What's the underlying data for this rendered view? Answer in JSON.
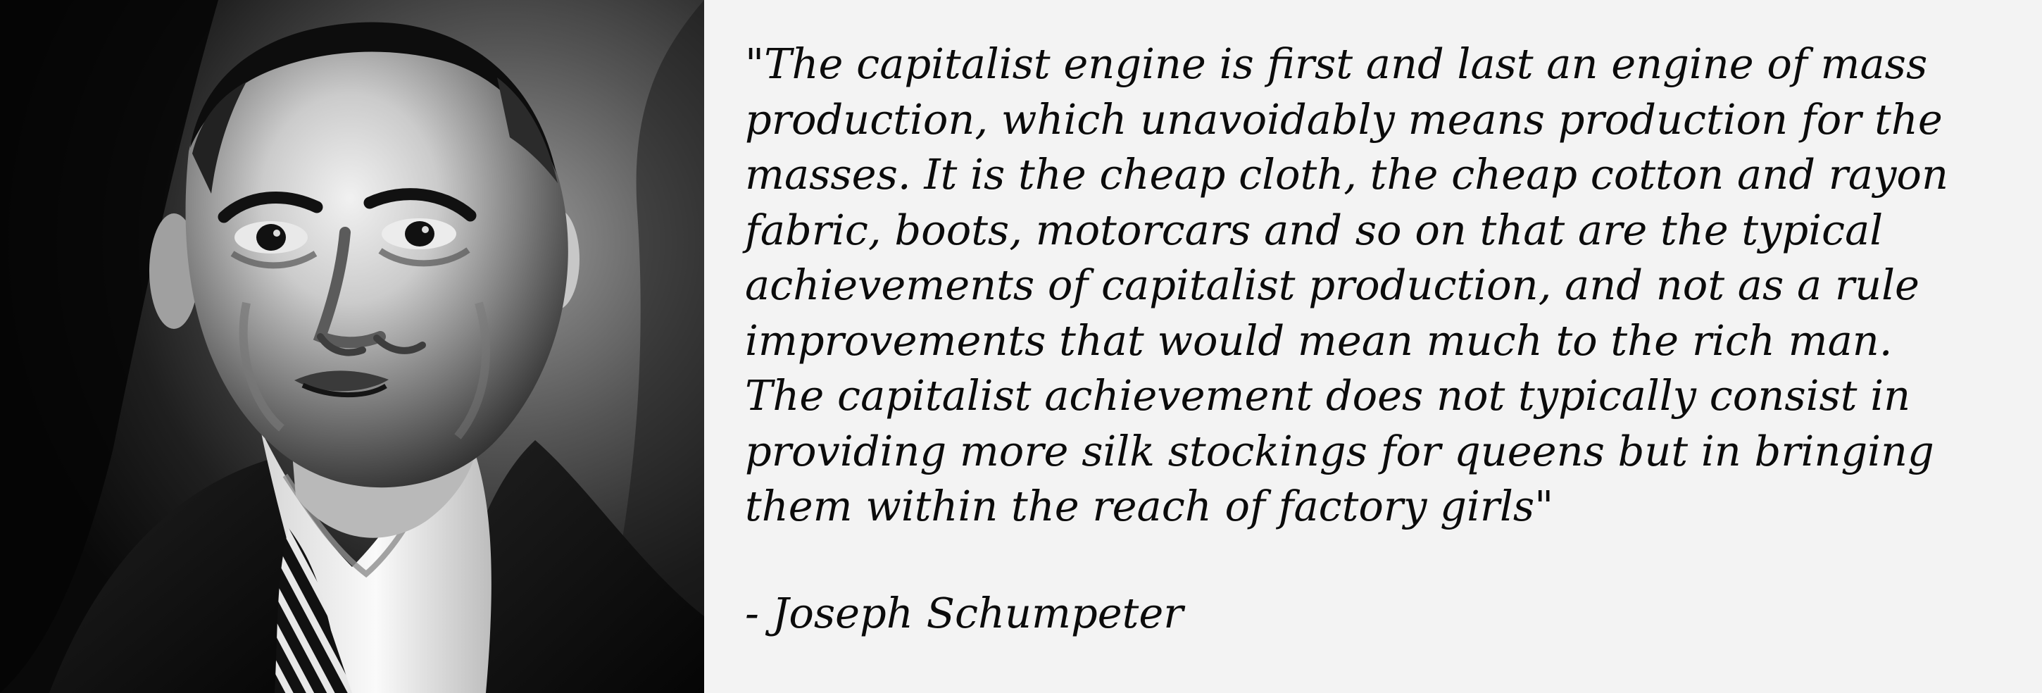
{
  "photo": {
    "subject": "portrait-photo"
  },
  "quote": {
    "lines": [
      "\"The capitalist engine is first and last an engine of mass",
      "production, which unavoidably means production for the",
      "masses. It is the cheap cloth, the cheap cotton and rayon",
      "fabric, boots, motorcars and so on that are the typical",
      "achievements of capitalist production, and not as a rule",
      "improvements that would mean much to the rich man.",
      "The capitalist achievement does not typically consist in",
      "providing more silk stockings for queens but in bringing",
      "them within the reach of factory girls\""
    ],
    "attribution": "- Joseph Schumpeter"
  },
  "colors": {
    "background": "#f3f3f3",
    "text": "#0b0b0b"
  }
}
